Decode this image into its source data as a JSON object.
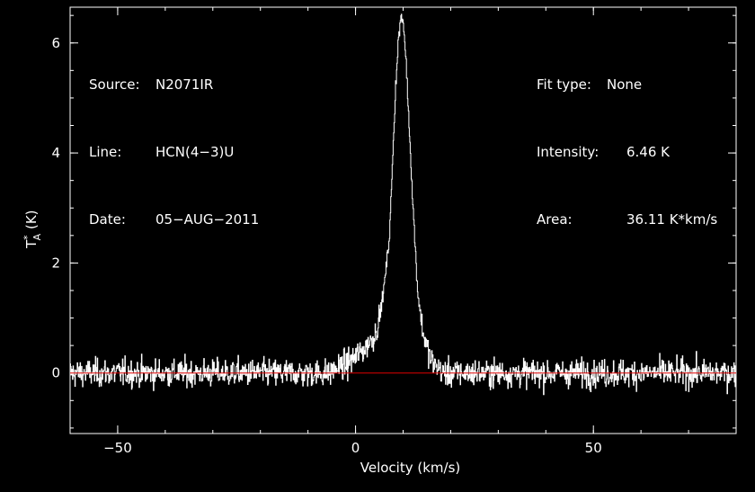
{
  "header": {
    "left": [
      {
        "key": "Source:",
        "value": "N2071IR"
      },
      {
        "key": "Line:",
        "value": "HCN(4−3)U"
      },
      {
        "key": "Date:",
        "value": "05−AUG−2011"
      }
    ],
    "right": [
      {
        "key": "Fit type:",
        "value": "None"
      },
      {
        "key": "Intensity:",
        "value": "6.46 K"
      },
      {
        "key": "Area:",
        "value": "36.11 K*km/s"
      }
    ]
  },
  "colors": {
    "background": "#000000",
    "axes": "#ffffff",
    "spectrum": "#ffffff",
    "baseline": "#e00000"
  },
  "chart_data": {
    "type": "line",
    "xlabel": "Velocity (km/s)",
    "ylabel": "T*A (K)",
    "xlim": [
      -60,
      80
    ],
    "ylim": [
      -1.1,
      6.65
    ],
    "xticks": [
      -50,
      0,
      50
    ],
    "xtick_labels": [
      "−50",
      "0",
      "50"
    ],
    "yticks": [
      0,
      2,
      4,
      6
    ],
    "ytick_labels": [
      "0",
      "2",
      "4",
      "6"
    ],
    "grid": false,
    "baseline_y": 0,
    "noise_rms": 0.22,
    "series": [
      {
        "x": [
          -5,
          -2,
          0,
          2,
          4,
          5,
          6,
          7,
          7.5,
          8,
          8.5,
          9,
          9.5,
          10,
          10.5,
          11,
          11.5,
          12,
          12.5,
          13,
          14,
          15,
          16,
          18
        ],
        "y": [
          0.05,
          0.15,
          0.3,
          0.45,
          0.7,
          1.0,
          1.6,
          2.4,
          3.3,
          4.4,
          5.4,
          6.1,
          6.46,
          6.35,
          5.8,
          4.9,
          4.0,
          3.1,
          2.3,
          1.5,
          0.8,
          0.45,
          0.2,
          0.05
        ]
      }
    ]
  }
}
